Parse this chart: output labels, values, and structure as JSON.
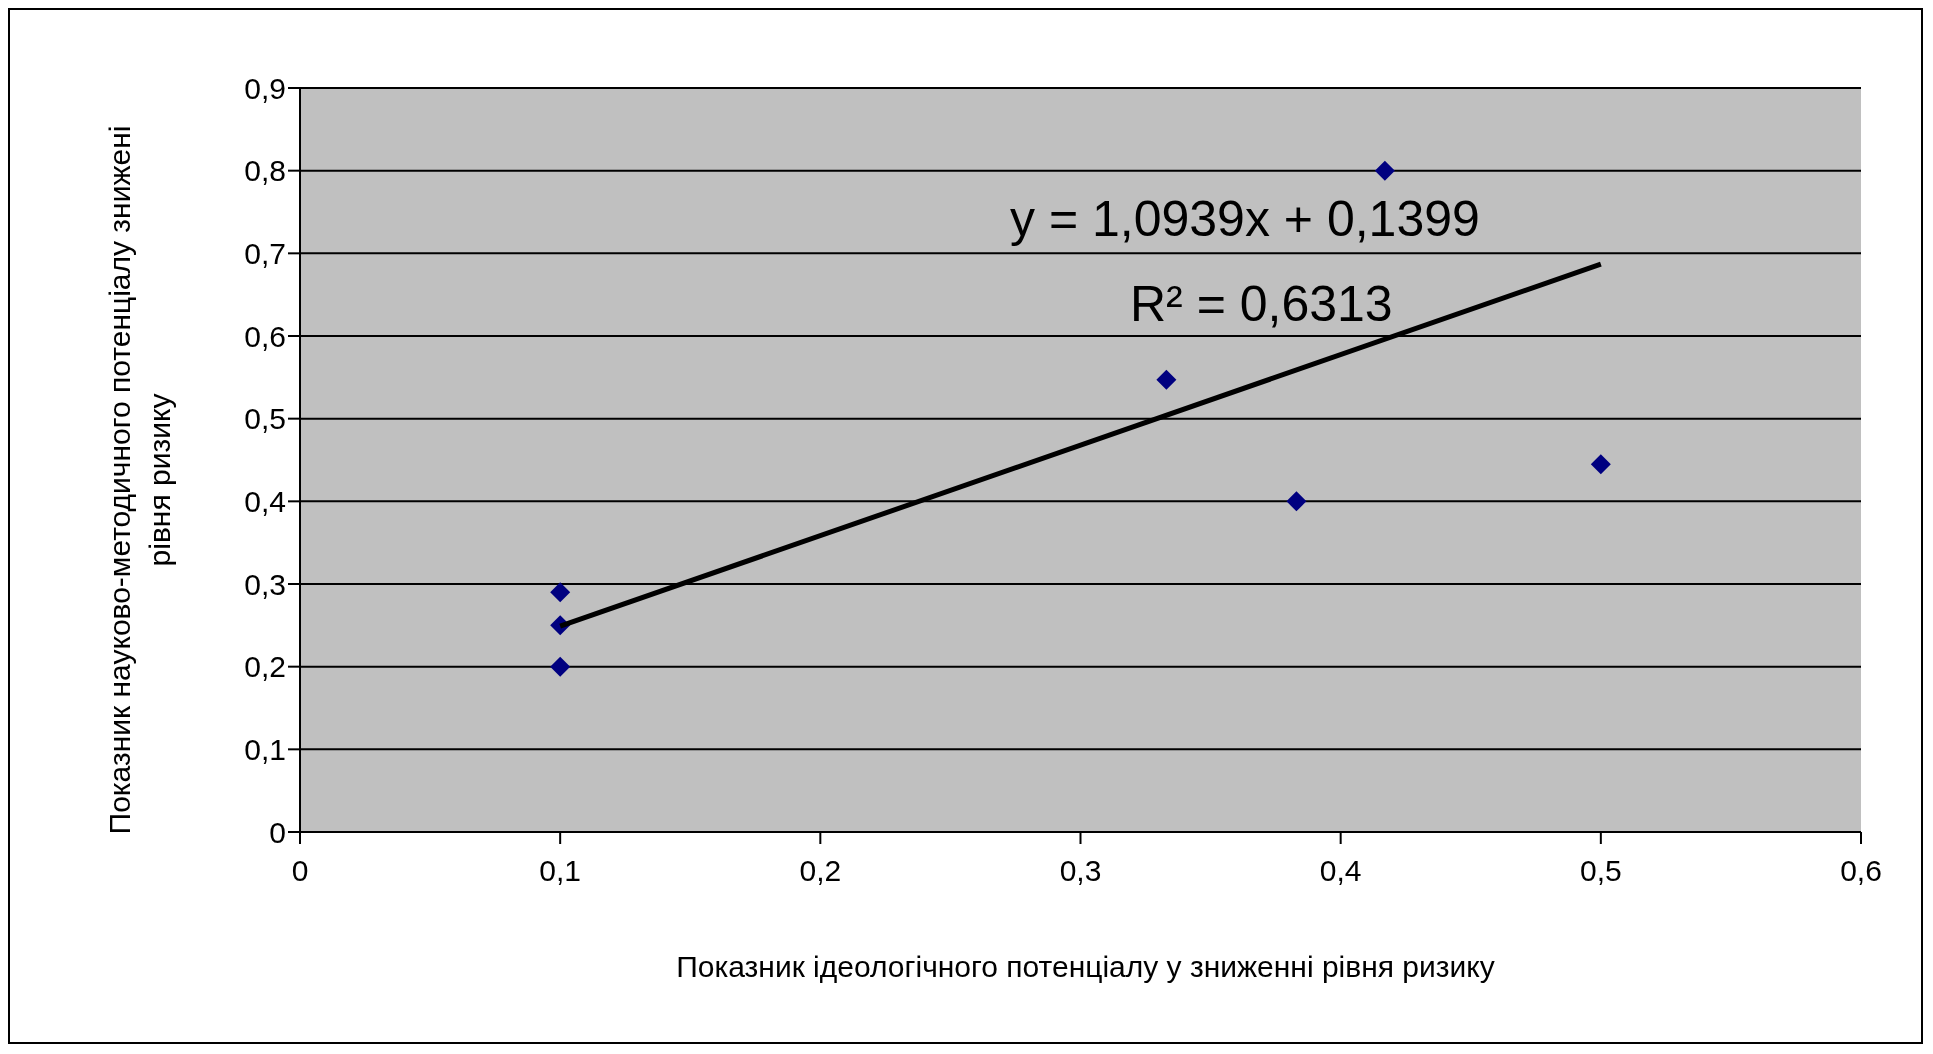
{
  "chart_data": {
    "type": "scatter",
    "xlabel": "Показник ідеологічного потенціалу у зниженні рівня ризику",
    "ylabel": "Показник науково-методичного потенціалу знижені рівня ризику",
    "series": [
      {
        "color": "#000080",
        "marker": "diamond",
        "x": [
          0.1,
          0.1,
          0.1,
          0.333,
          0.383,
          0.417,
          0.5
        ],
        "values": [
          0.29,
          0.25,
          0.2,
          0.547,
          0.4,
          0.8,
          0.445
        ]
      },
      {
        "type": "line",
        "color": "#000000",
        "marker": "none",
        "x": [
          0.1,
          0.5
        ],
        "values": [
          0.249,
          0.687
        ]
      }
    ],
    "annotations": [
      "y = 1,0939x + 0,1399",
      "R² = 0,6313"
    ],
    "xlim": [
      0,
      0.6
    ],
    "xticks": [
      0,
      {
        "value": 0.1,
        "label": "0,1"
      },
      {
        "value": 0.2,
        "label": "0,2"
      },
      {
        "value": 0.3,
        "label": "0,3"
      },
      {
        "value": 0.4,
        "label": "0,4"
      },
      {
        "value": 0.5,
        "label": "0,5"
      },
      {
        "value": 0.6,
        "label": "0,6"
      }
    ],
    "ylim": [
      0,
      0.9
    ],
    "yticks": [
      0,
      {
        "value": 0.1,
        "label": "0,1"
      },
      {
        "value": 0.2,
        "label": "0,2"
      },
      {
        "value": 0.3,
        "label": "0,3"
      },
      {
        "value": 0.4,
        "label": "0,4"
      },
      {
        "value": 0.5,
        "label": "0,5"
      },
      {
        "value": 0.6,
        "label": "0,6"
      },
      {
        "value": 0.7,
        "label": "0,7"
      },
      {
        "value": 0.8,
        "label": "0,8"
      },
      {
        "value": 0.9,
        "label": "0,9"
      }
    ],
    "grid": "y"
  }
}
